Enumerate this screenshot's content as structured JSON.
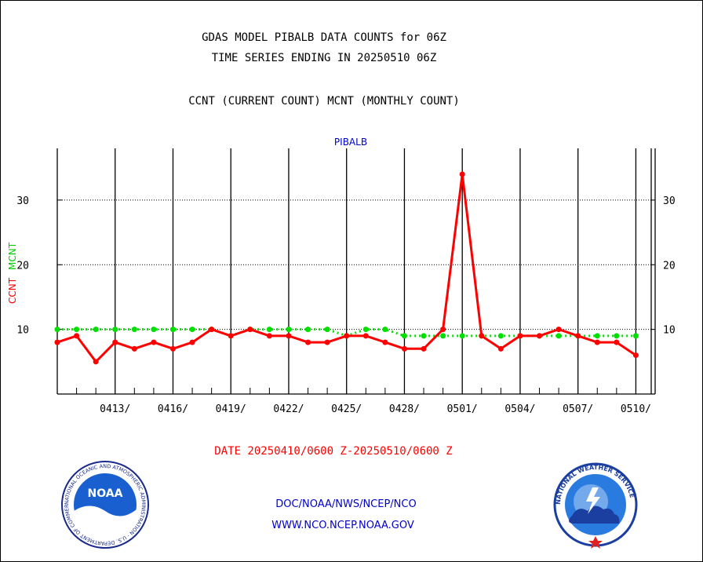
{
  "chart_data": {
    "type": "line",
    "title": "GDAS MODEL PIBALB DATA COUNTS for 06Z",
    "subtitle": "TIME SERIES ENDING IN 20250510 06Z",
    "description_line": "CCNT (CURRENT COUNT) MCNT (MONTHLY COUNT)",
    "panel_label": "PIBALB",
    "ylabel_ccnt": "CCNT",
    "ylabel_mcnt": "MCNT",
    "xlabel": "DATE 20250410/0600 Z-20250510/0600 Z",
    "ylim": [
      0,
      38
    ],
    "y_ticks": [
      10,
      20,
      30
    ],
    "x_tick_labels": [
      "0413/",
      "0416/",
      "0419/",
      "0422/",
      "0425/",
      "0428/",
      "0501/",
      "0504/",
      "0507/",
      "0510/"
    ],
    "x": [
      "0410",
      "0411",
      "0412",
      "0413",
      "0414",
      "0415",
      "0416",
      "0417",
      "0418",
      "0419",
      "0420",
      "0421",
      "0422",
      "0423",
      "0424",
      "0425",
      "0426",
      "0427",
      "0428",
      "0429",
      "0430",
      "0501",
      "0502",
      "0503",
      "0504",
      "0505",
      "0506",
      "0507",
      "0508",
      "0509",
      "0510"
    ],
    "series": [
      {
        "name": "CCNT",
        "color": "#ff0000",
        "values": [
          8,
          9,
          5,
          8,
          7,
          8,
          7,
          8,
          10,
          9,
          10,
          9,
          9,
          8,
          8,
          9,
          9,
          8,
          7,
          7,
          10,
          34,
          9,
          7,
          9,
          9,
          10,
          9,
          8,
          8,
          6
        ]
      },
      {
        "name": "MCNT",
        "color": "#00e000",
        "values": [
          10,
          10,
          10,
          10,
          10,
          10,
          10,
          10,
          10,
          9,
          10,
          10,
          10,
          10,
          10,
          9,
          10,
          10,
          9,
          9,
          9,
          9,
          9,
          9,
          9,
          9,
          9,
          9,
          9,
          9,
          9
        ]
      }
    ],
    "grid": true
  },
  "footer": {
    "link1": "DOC/NOAA/NWS/NCEP/NCO",
    "link2": "WWW.NCO.NCEP.NOAA.GOV"
  },
  "logos": {
    "noaa_text": "NOAA",
    "noaa_ring_text": "NATIONAL OCEANIC AND ATMOSPHERIC ADMINISTRATION · U.S. DEPARTMENT OF COMMERCE",
    "nws_ring_text": "NATIONAL WEATHER SERVICE"
  },
  "colors": {
    "text": "#000000",
    "accent_blue": "#0000cc",
    "ccnt_red": "#ff0000",
    "mcnt_green": "#00e000"
  }
}
